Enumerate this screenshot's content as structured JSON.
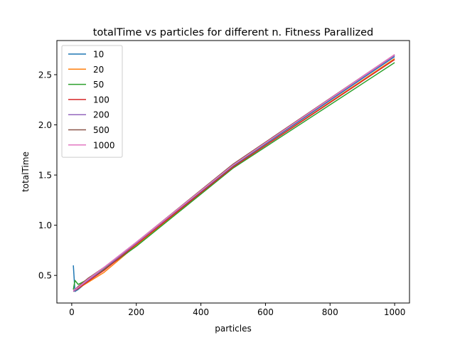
{
  "chart_data": {
    "type": "line",
    "title": "totalTime vs particles for different n. Fitness Parallized",
    "xlabel": "particles",
    "ylabel": "totalTime",
    "xlim": [
      -46,
      1046
    ],
    "ylim": [
      0.225,
      2.84
    ],
    "xticks": [
      0,
      200,
      400,
      600,
      800,
      1000
    ],
    "xtick_labels": [
      "0",
      "200",
      "400",
      "600",
      "800",
      "1000"
    ],
    "yticks": [
      0.5,
      1.0,
      1.5,
      2.0,
      2.5
    ],
    "ytick_labels": [
      "0.5",
      "1.0",
      "1.5",
      "2.0",
      "2.5"
    ],
    "grid": false,
    "legend_position": "upper-left",
    "series": [
      {
        "name": "10",
        "color": "#1f77b4",
        "x": [
          5,
          10,
          20,
          50,
          100,
          200,
          500,
          1000
        ],
        "y": [
          0.6,
          0.34,
          0.36,
          0.44,
          0.56,
          0.81,
          1.59,
          2.68
        ]
      },
      {
        "name": "20",
        "color": "#ff7f0e",
        "x": [
          5,
          10,
          20,
          50,
          100,
          200,
          500,
          1000
        ],
        "y": [
          0.34,
          0.35,
          0.37,
          0.43,
          0.53,
          0.8,
          1.58,
          2.66
        ]
      },
      {
        "name": "50",
        "color": "#2ca02c",
        "x": [
          5,
          10,
          20,
          50,
          100,
          200,
          500,
          1000
        ],
        "y": [
          0.36,
          0.45,
          0.41,
          0.46,
          0.56,
          0.79,
          1.57,
          2.62
        ]
      },
      {
        "name": "100",
        "color": "#d62728",
        "x": [
          5,
          10,
          20,
          50,
          100,
          200,
          500,
          1000
        ],
        "y": [
          0.34,
          0.35,
          0.37,
          0.44,
          0.55,
          0.81,
          1.58,
          2.65
        ]
      },
      {
        "name": "200",
        "color": "#9467bd",
        "x": [
          5,
          10,
          20,
          50,
          100,
          200,
          500,
          1000
        ],
        "y": [
          0.34,
          0.35,
          0.38,
          0.45,
          0.57,
          0.82,
          1.6,
          2.69
        ]
      },
      {
        "name": "500",
        "color": "#8c564b",
        "x": [
          5,
          10,
          20,
          50,
          100,
          200,
          500,
          1000
        ],
        "y": [
          0.35,
          0.36,
          0.39,
          0.47,
          0.58,
          0.83,
          1.61,
          2.7
        ]
      },
      {
        "name": "1000",
        "color": "#e377c2",
        "x": [
          5,
          10,
          20,
          50,
          100,
          200,
          500,
          1000
        ],
        "y": [
          0.35,
          0.36,
          0.38,
          0.46,
          0.58,
          0.83,
          1.6,
          2.7
        ]
      }
    ]
  }
}
